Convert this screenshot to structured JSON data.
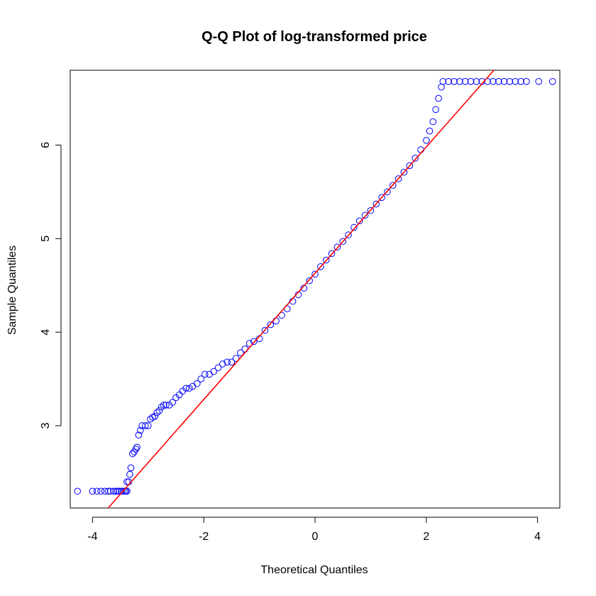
{
  "chart_data": {
    "type": "scatter",
    "title": "Q-Q Plot of log-transformed price",
    "xlabel": "Theoretical Quantiles",
    "ylabel": "Sample Quantiles",
    "xlim": [
      -4.4,
      4.4
    ],
    "ylim": [
      2.12,
      6.8
    ],
    "xticks": [
      -4,
      -2,
      0,
      2,
      4
    ],
    "yticks": [
      3,
      4,
      5,
      6
    ],
    "grid": false,
    "legend": "none",
    "point_color": "#0000ff",
    "line_color": "#ff0000",
    "reference_line": {
      "intercept": 4.63,
      "slope": 0.675
    },
    "series": [
      {
        "points": [
          [
            -4.27,
            2.3
          ],
          [
            -4.0,
            2.3
          ],
          [
            -3.92,
            2.3
          ],
          [
            -3.85,
            2.3
          ],
          [
            -3.78,
            2.3
          ],
          [
            -3.72,
            2.3
          ],
          [
            -3.68,
            2.3
          ],
          [
            -3.62,
            2.3
          ],
          [
            -3.58,
            2.3
          ],
          [
            -3.55,
            2.3
          ],
          [
            -3.52,
            2.3
          ],
          [
            -3.48,
            2.3
          ],
          [
            -3.45,
            2.3
          ],
          [
            -3.42,
            2.3
          ],
          [
            -3.4,
            2.3
          ],
          [
            -3.38,
            2.3
          ],
          [
            -3.38,
            2.4
          ],
          [
            -3.35,
            2.4
          ],
          [
            -3.33,
            2.48
          ],
          [
            -3.31,
            2.55
          ],
          [
            -3.28,
            2.7
          ],
          [
            -3.25,
            2.72
          ],
          [
            -3.22,
            2.75
          ],
          [
            -3.2,
            2.77
          ],
          [
            -3.17,
            2.9
          ],
          [
            -3.14,
            2.95
          ],
          [
            -3.11,
            3.0
          ],
          [
            -3.05,
            3.0
          ],
          [
            -3.0,
            3.0
          ],
          [
            -2.96,
            3.07
          ],
          [
            -2.92,
            3.09
          ],
          [
            -2.88,
            3.1
          ],
          [
            -2.84,
            3.14
          ],
          [
            -2.8,
            3.16
          ],
          [
            -2.76,
            3.2
          ],
          [
            -2.72,
            3.22
          ],
          [
            -2.68,
            3.22
          ],
          [
            -2.62,
            3.22
          ],
          [
            -2.56,
            3.25
          ],
          [
            -2.5,
            3.3
          ],
          [
            -2.44,
            3.33
          ],
          [
            -2.38,
            3.37
          ],
          [
            -2.32,
            3.4
          ],
          [
            -2.26,
            3.4
          ],
          [
            -2.2,
            3.42
          ],
          [
            -2.12,
            3.45
          ],
          [
            -2.05,
            3.5
          ],
          [
            -1.98,
            3.55
          ],
          [
            -1.9,
            3.55
          ],
          [
            -1.82,
            3.58
          ],
          [
            -1.74,
            3.62
          ],
          [
            -1.66,
            3.66
          ],
          [
            -1.58,
            3.68
          ],
          [
            -1.5,
            3.68
          ],
          [
            -1.42,
            3.72
          ],
          [
            -1.34,
            3.78
          ],
          [
            -1.26,
            3.82
          ],
          [
            -1.18,
            3.88
          ],
          [
            -1.1,
            3.9
          ],
          [
            -1.0,
            3.93
          ],
          [
            -0.9,
            4.02
          ],
          [
            -0.8,
            4.08
          ],
          [
            -0.7,
            4.12
          ],
          [
            -0.6,
            4.18
          ],
          [
            -0.5,
            4.25
          ],
          [
            -0.4,
            4.33
          ],
          [
            -0.3,
            4.4
          ],
          [
            -0.2,
            4.47
          ],
          [
            -0.1,
            4.55
          ],
          [
            0.0,
            4.62
          ],
          [
            0.1,
            4.7
          ],
          [
            0.2,
            4.77
          ],
          [
            0.3,
            4.84
          ],
          [
            0.4,
            4.91
          ],
          [
            0.5,
            4.97
          ],
          [
            0.6,
            5.04
          ],
          [
            0.7,
            5.12
          ],
          [
            0.8,
            5.19
          ],
          [
            0.9,
            5.25
          ],
          [
            1.0,
            5.3
          ],
          [
            1.1,
            5.37
          ],
          [
            1.2,
            5.44
          ],
          [
            1.3,
            5.5
          ],
          [
            1.4,
            5.57
          ],
          [
            1.5,
            5.64
          ],
          [
            1.6,
            5.71
          ],
          [
            1.7,
            5.78
          ],
          [
            1.8,
            5.86
          ],
          [
            1.9,
            5.95
          ],
          [
            2.0,
            6.05
          ],
          [
            2.06,
            6.15
          ],
          [
            2.12,
            6.25
          ],
          [
            2.17,
            6.38
          ],
          [
            2.22,
            6.5
          ],
          [
            2.27,
            6.62
          ],
          [
            2.3,
            6.68
          ],
          [
            2.4,
            6.68
          ],
          [
            2.5,
            6.68
          ],
          [
            2.6,
            6.68
          ],
          [
            2.7,
            6.68
          ],
          [
            2.8,
            6.68
          ],
          [
            2.9,
            6.68
          ],
          [
            3.0,
            6.68
          ],
          [
            3.1,
            6.68
          ],
          [
            3.2,
            6.68
          ],
          [
            3.3,
            6.68
          ],
          [
            3.4,
            6.68
          ],
          [
            3.5,
            6.68
          ],
          [
            3.6,
            6.68
          ],
          [
            3.7,
            6.68
          ],
          [
            3.8,
            6.68
          ],
          [
            4.02,
            6.68
          ],
          [
            4.27,
            6.68
          ]
        ]
      }
    ]
  }
}
